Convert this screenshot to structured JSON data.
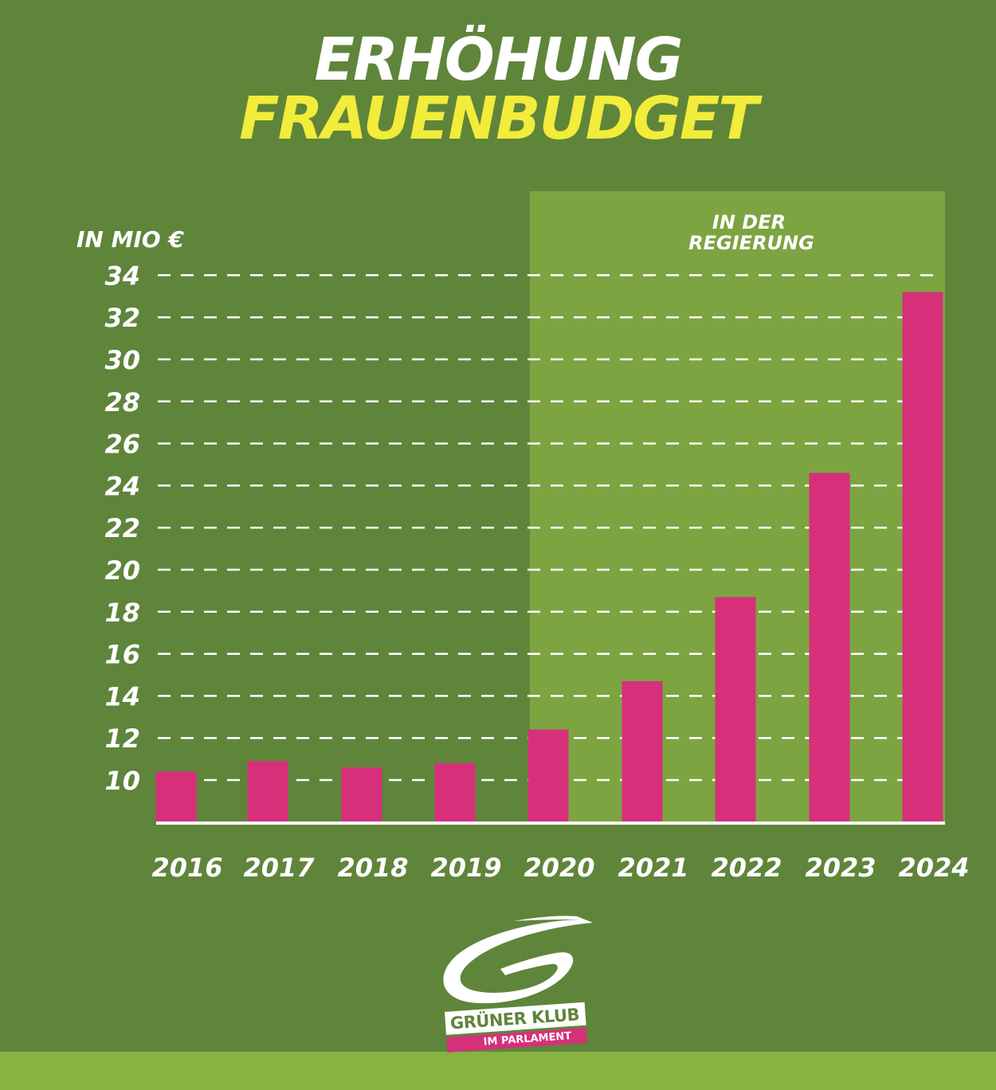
{
  "header": {
    "title_line1": "ERHÖHUNG",
    "title_line2": "FRAUENBUDGET"
  },
  "chart_data": {
    "type": "bar",
    "title": "ERHÖHUNG FRAUENBUDGET",
    "ylabel": "IN MIO €",
    "xlabel": "",
    "categories": [
      "2016",
      "2017",
      "2018",
      "2019",
      "2020",
      "2021",
      "2022",
      "2023",
      "2024"
    ],
    "values": [
      10.4,
      10.9,
      10.6,
      10.8,
      12.4,
      14.7,
      18.7,
      24.6,
      33.2
    ],
    "ylim": [
      8,
      34
    ],
    "yticks": [
      10,
      12,
      14,
      16,
      18,
      20,
      22,
      24,
      26,
      28,
      30,
      32,
      34
    ],
    "grid": "horizontal dashed",
    "highlight": {
      "label_line1": "IN DER",
      "label_line2": "REGIERUNG",
      "from": "2020",
      "to": "2024"
    },
    "colors": {
      "background": "#5f853b",
      "highlight": "#7ca441",
      "bar": "#d6307a",
      "title_line2": "#f2ec3a",
      "text": "#ffffff"
    }
  },
  "logo": {
    "name": "GRÜNER KLUB",
    "subtitle": "IM PARLAMENT"
  }
}
